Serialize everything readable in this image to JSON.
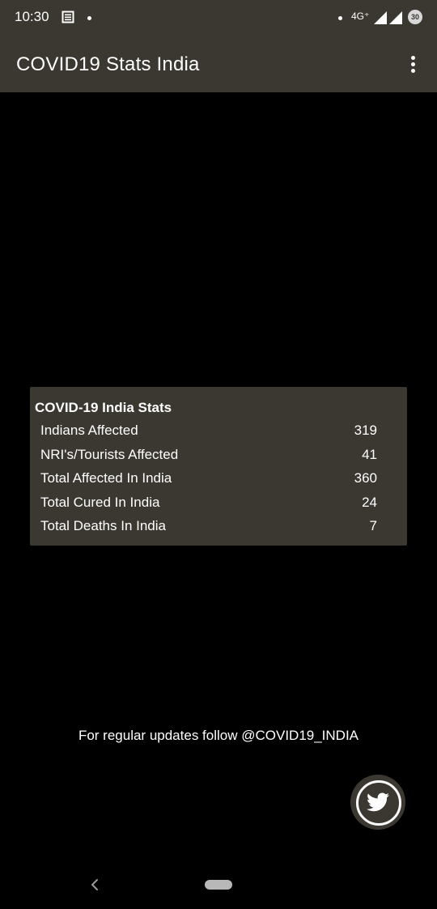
{
  "status_bar": {
    "time": "10:30",
    "network": "4G⁺",
    "battery": "30",
    "icons": [
      "notification-news-icon",
      "dot-icon",
      "signal-icon",
      "battery-icon"
    ]
  },
  "app_bar": {
    "title": "COVID19 Stats India",
    "menu_icon": "more-vert-icon"
  },
  "stats_card": {
    "title": "COVID-19 India Stats",
    "rows": [
      {
        "label": "Indians Affected",
        "value": "319"
      },
      {
        "label": "NRI's/Tourists Affected",
        "value": "41"
      },
      {
        "label": "Total Affected In India",
        "value": "360"
      },
      {
        "label": "Total Cured In India",
        "value": "24"
      },
      {
        "label": "Total Deaths In India",
        "value": "7"
      }
    ]
  },
  "footer": {
    "follow_text": "For regular updates follow @COVID19_INDIA",
    "twitter_icon": "twitter-icon"
  },
  "nav_bar": {
    "back_icon": "back-chevron-icon",
    "home_icon": "home-pill-icon"
  },
  "colors": {
    "bar_background": "#3b3731",
    "screen_background": "#000000",
    "text": "#ffffff"
  }
}
